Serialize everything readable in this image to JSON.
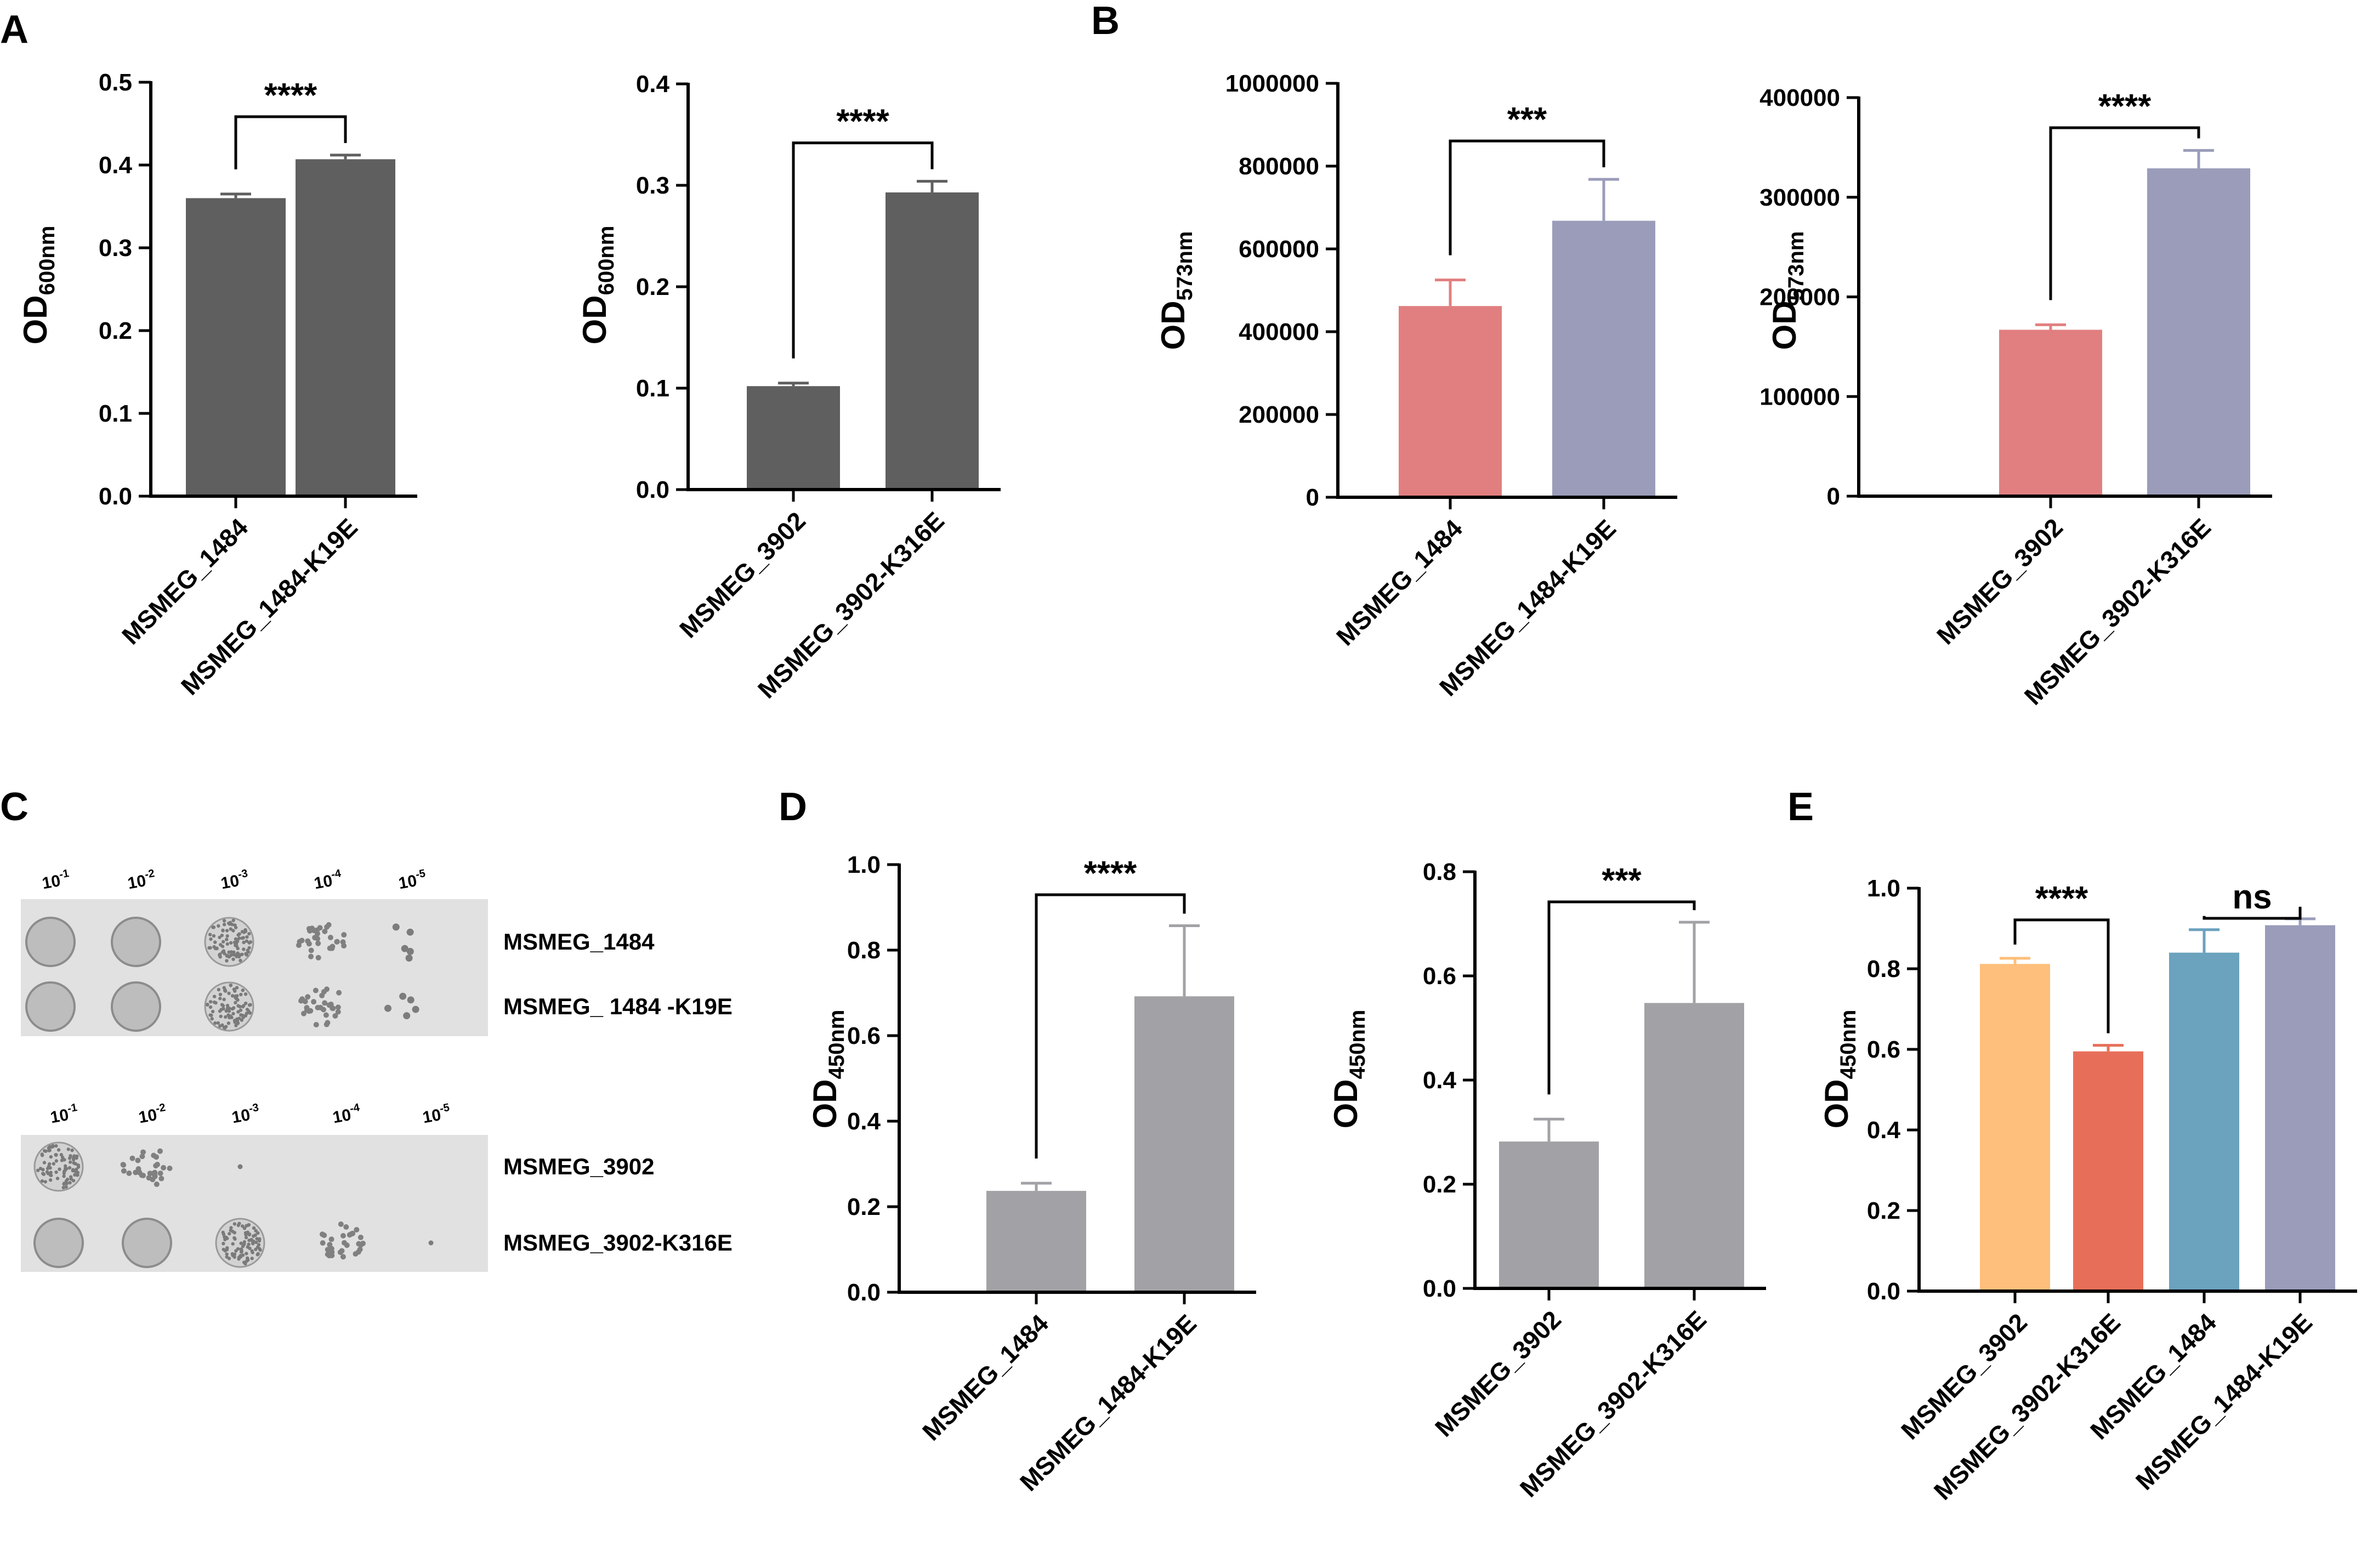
{
  "panel_labels": [
    "A",
    "B",
    "C",
    "D",
    "E"
  ],
  "colors": {
    "dark_gray": "#5f5f5f",
    "light_gray": "#a2a2a6",
    "pink": "#e17f80",
    "lavender": "#9a9cba",
    "light_orange": "#fdbf7b",
    "coral": "#e76f5a",
    "steel_blue": "#6ba2be",
    "plate_bg": "#e1e1e1"
  },
  "chart_data": [
    {
      "id": "A1",
      "type": "bar",
      "panel": "A",
      "categories": [
        "MSMEG_1484",
        "MSMEG_1484-K19E"
      ],
      "values": [
        0.36,
        0.407
      ],
      "errors": [
        0.005,
        0.005
      ],
      "ylabel_main": "OD",
      "ylabel_sub": "600nm",
      "ylim": [
        0,
        0.5
      ],
      "yticks": [
        "0.0",
        "0.1",
        "0.2",
        "0.3",
        "0.4",
        "0.5"
      ],
      "yticks_values": [
        0,
        0.1,
        0.2,
        0.3,
        0.4,
        0.5
      ],
      "colors": [
        "#5f5f5f",
        "#5f5f5f"
      ],
      "comparisons": [
        {
          "from": 0,
          "to": 1,
          "label": "****"
        }
      ]
    },
    {
      "id": "A2",
      "type": "bar",
      "panel": "A",
      "categories": [
        "MSMEG_3902",
        "MSMEG_3902-K316E"
      ],
      "values": [
        0.102,
        0.293
      ],
      "errors": [
        0.003,
        0.011
      ],
      "ylabel_main": "OD",
      "ylabel_sub": "600nm",
      "ylim": [
        0,
        0.4
      ],
      "yticks": [
        "0.0",
        "0.1",
        "0.2",
        "0.3",
        "0.4"
      ],
      "yticks_values": [
        0,
        0.1,
        0.2,
        0.3,
        0.4
      ],
      "colors": [
        "#5f5f5f",
        "#5f5f5f"
      ],
      "comparisons": [
        {
          "from": 0,
          "to": 1,
          "label": "****"
        }
      ]
    },
    {
      "id": "B1",
      "type": "bar",
      "panel": "B",
      "categories": [
        "MSMEG_1484",
        "MSMEG_1484-K19E"
      ],
      "values": [
        462000,
        668000
      ],
      "errors": [
        63000,
        100000
      ],
      "ylabel_main": "OD",
      "ylabel_sub": "573nm",
      "ylim": [
        0,
        1000000
      ],
      "yticks": [
        "0",
        "200000",
        "400000",
        "600000",
        "800000",
        "1000000"
      ],
      "yticks_values": [
        0,
        200000,
        400000,
        600000,
        800000,
        1000000
      ],
      "colors": [
        "#e17f80",
        "#9a9cba"
      ],
      "comparisons": [
        {
          "from": 0,
          "to": 1,
          "label": "***"
        }
      ]
    },
    {
      "id": "B2",
      "type": "bar",
      "panel": "B",
      "categories": [
        "MSMEG_3902",
        "MSMEG_3902-K316E"
      ],
      "values": [
        167000,
        329000
      ],
      "errors": [
        5000,
        18000
      ],
      "ylabel_main": "OD",
      "ylabel_sub": "573nm",
      "ylim": [
        0,
        400000
      ],
      "yticks": [
        "0",
        "100000",
        "200000",
        "300000",
        "400000"
      ],
      "yticks_values": [
        0,
        100000,
        200000,
        300000,
        400000
      ],
      "colors": [
        "#e17f80",
        "#9a9cba"
      ],
      "comparisons": [
        {
          "from": 0,
          "to": 1,
          "label": "****"
        }
      ]
    },
    {
      "id": "D1",
      "type": "bar",
      "panel": "D",
      "categories": [
        "MSMEG_1484",
        "MSMEG_1484-K19E"
      ],
      "values": [
        0.237,
        0.692
      ],
      "errors": [
        0.018,
        0.165
      ],
      "ylabel_main": "OD",
      "ylabel_sub": "450nm",
      "ylim": [
        0,
        1.0
      ],
      "yticks": [
        "0.0",
        "0.2",
        "0.4",
        "0.6",
        "0.8",
        "1.0"
      ],
      "yticks_values": [
        0,
        0.2,
        0.4,
        0.6,
        0.8,
        1.0
      ],
      "colors": [
        "#a2a2a6",
        "#a2a2a6"
      ],
      "comparisons": [
        {
          "from": 0,
          "to": 1,
          "label": "****"
        }
      ]
    },
    {
      "id": "D2",
      "type": "bar",
      "panel": "D",
      "categories": [
        "MSMEG_3902",
        "MSMEG_3902-K316E"
      ],
      "values": [
        0.282,
        0.548
      ],
      "errors": [
        0.043,
        0.155
      ],
      "ylabel_main": "OD",
      "ylabel_sub": "450nm",
      "ylim": [
        0,
        0.8
      ],
      "yticks": [
        "0.0",
        "0.2",
        "0.4",
        "0.6",
        "0.8"
      ],
      "yticks_values": [
        0,
        0.2,
        0.4,
        0.6,
        0.8
      ],
      "colors": [
        "#a2a2a6",
        "#a2a2a6"
      ],
      "comparisons": [
        {
          "from": 0,
          "to": 1,
          "label": "***"
        }
      ]
    },
    {
      "id": "E",
      "type": "bar",
      "panel": "E",
      "categories": [
        "MSMEG_3902",
        "MSMEG_3902-K316E",
        "MSMEG_1484",
        "MSMEG_1484-K19E"
      ],
      "values": [
        0.812,
        0.595,
        0.84,
        0.908
      ],
      "errors": [
        0.014,
        0.015,
        0.057,
        0.016
      ],
      "ylabel_main": "OD",
      "ylabel_sub": "450nm",
      "ylim": [
        0,
        1.0
      ],
      "yticks": [
        "0.0",
        "0.2",
        "0.4",
        "0.6",
        "0.8",
        "1.0"
      ],
      "yticks_values": [
        0,
        0.2,
        0.4,
        0.6,
        0.8,
        1.0
      ],
      "colors": [
        "#fdbf7b",
        "#e76f5a",
        "#6ba2be",
        "#9a9cba"
      ],
      "comparisons": [
        {
          "from": 0,
          "to": 1,
          "label": "****"
        },
        {
          "from": 2,
          "to": 3,
          "label": "ns"
        }
      ]
    }
  ],
  "spot_assay": {
    "panel": "C",
    "plates": [
      {
        "dilution_base": "10",
        "dilution_exponents": [
          "-1",
          "-2",
          "-3",
          "-4",
          "-5"
        ],
        "rows": [
          {
            "label": "MSMEG_1484",
            "spot_growth": [
              "full",
              "full",
              "dense",
              "colonies",
              "few"
            ]
          },
          {
            "label": "MSMEG_ 1484 -K19E",
            "spot_growth": [
              "full",
              "full",
              "dense",
              "colonies",
              "few"
            ]
          }
        ]
      },
      {
        "dilution_base": "10",
        "dilution_exponents": [
          "-1",
          "-2",
          "-3",
          "-4",
          "-5"
        ],
        "rows": [
          {
            "label": "MSMEG_3902",
            "spot_growth": [
              "dense",
              "colonies",
              "single",
              "none",
              "none"
            ]
          },
          {
            "label": "MSMEG_3902-K316E",
            "spot_growth": [
              "full",
              "full",
              "dense",
              "colonies",
              "single"
            ]
          }
        ]
      }
    ]
  }
}
